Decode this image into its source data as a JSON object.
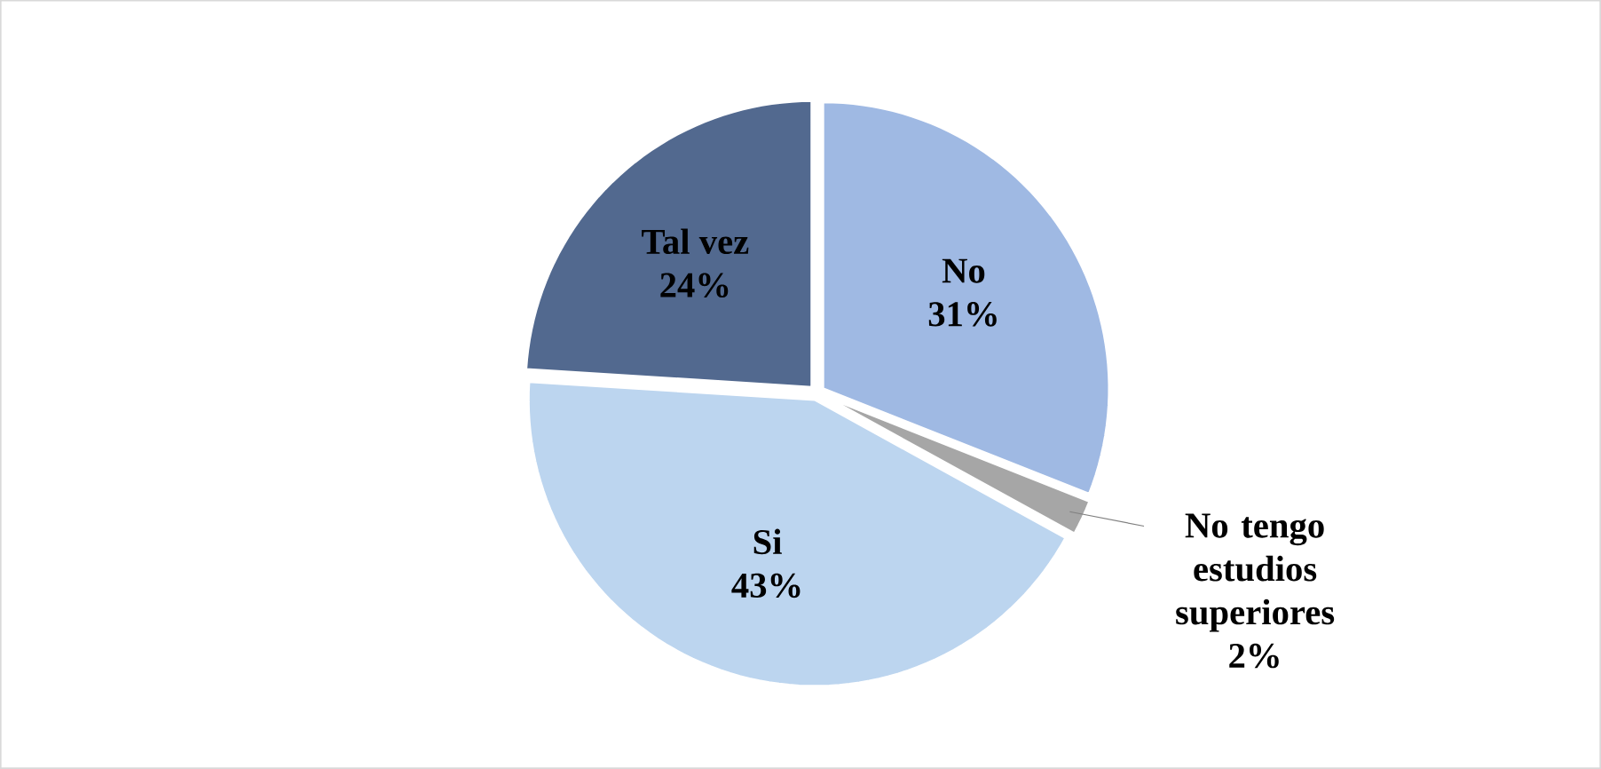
{
  "chart_data": {
    "type": "pie",
    "categories": [
      "No",
      "No tengo estudios superiores",
      "Si",
      "Tal vez"
    ],
    "values": [
      31,
      2,
      43,
      24
    ],
    "colors": [
      "#9fb9e3",
      "#a6a6a6",
      "#bcd5ef",
      "#52698f"
    ],
    "value_labels": [
      "31%",
      "2%",
      "43%",
      "24%"
    ]
  }
}
